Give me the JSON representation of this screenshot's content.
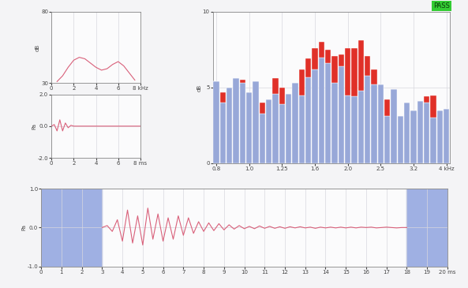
{
  "chart_data": [
    {
      "type": "line",
      "ylabel": "dB",
      "x": [
        0.5,
        1.0,
        1.5,
        2.0,
        2.5,
        3.0,
        3.5,
        4.0,
        4.5,
        5.0,
        5.5,
        6.0,
        6.5,
        7.0,
        7.5
      ],
      "values": [
        31,
        35,
        41,
        46,
        48,
        47,
        44,
        41,
        39,
        40,
        43,
        45,
        42,
        37,
        32
      ],
      "color": "#d9607a",
      "xlim": [
        0,
        8
      ],
      "xticks": [
        0,
        2,
        4,
        6,
        {
          "value": 8,
          "label": "8 kHz"
        }
      ],
      "ylim": [
        30,
        80
      ],
      "yticks": [
        30,
        80
      ],
      "grid": true
    },
    {
      "type": "line",
      "ylabel": "Pa",
      "x": [
        0,
        0.25,
        0.5,
        0.75,
        1.0,
        1.25,
        1.5,
        1.75,
        2.0,
        2.25,
        2.5,
        2.75,
        3.0,
        3.25,
        3.5,
        3.75,
        4.0,
        4.25,
        4.5,
        4.75,
        5.0,
        5.25,
        5.5,
        5.75,
        6.0,
        6.25,
        6.5,
        6.75,
        7.0,
        7.25,
        7.5,
        7.75,
        8.0
      ],
      "values": [
        0,
        0.1,
        -0.3,
        0.4,
        -0.3,
        0.2,
        -0.1,
        0.05,
        0,
        0,
        0,
        0,
        0,
        0,
        0,
        0,
        0,
        0,
        0,
        0,
        0,
        0,
        0,
        0,
        0,
        0,
        0,
        0,
        0,
        0,
        0,
        0,
        0
      ],
      "color": "#d9607a",
      "xlim": [
        0,
        8
      ],
      "xticks": [
        0,
        2,
        4,
        6,
        {
          "value": 8,
          "label": "8 ms"
        }
      ],
      "ylim": [
        -2,
        2
      ],
      "yticks": [
        {
          "value": -2,
          "label": "-2.0"
        },
        {
          "value": 0,
          "label": "0.0"
        },
        {
          "value": 2,
          "label": "2.0"
        }
      ],
      "grid": true
    },
    {
      "type": "bar",
      "stacked": true,
      "ylabel": "dB",
      "annotation": "PASS",
      "categories": [
        "0.8",
        null,
        null,
        null,
        null,
        "1.0",
        null,
        null,
        null,
        null,
        "1.25",
        null,
        null,
        null,
        null,
        "1.6",
        null,
        null,
        null,
        null,
        "2.0",
        null,
        null,
        null,
        null,
        "2.5",
        null,
        null,
        null,
        null,
        "3.2",
        null,
        null,
        null,
        null,
        "4 kHz"
      ],
      "series": [
        {
          "color": "#98a8d8",
          "values": [
            5.4,
            4.0,
            5.0,
            5.6,
            5.3,
            4.7,
            5.4,
            3.3,
            4.2,
            4.6,
            3.9,
            4.6,
            5.3,
            4.5,
            5.7,
            6.2,
            7.0,
            6.6,
            5.3,
            6.4,
            4.5,
            4.4,
            4.8,
            5.8,
            5.2,
            5.2,
            3.1,
            4.9,
            3.1,
            4.0,
            3.5,
            4.1,
            4.0,
            3.0,
            3.5,
            3.6
          ]
        },
        {
          "color": "#e03028",
          "values": [
            0,
            0.7,
            0,
            0,
            0.2,
            0,
            0,
            0.7,
            0,
            1.0,
            1.1,
            0,
            0,
            1.7,
            1.2,
            1.4,
            1.0,
            0.9,
            1.8,
            0.8,
            3.1,
            3.2,
            3.3,
            1.3,
            1.0,
            0,
            1.1,
            0,
            0,
            0,
            0,
            0,
            0.4,
            1.5,
            0,
            0
          ]
        }
      ],
      "ylim": [
        0,
        10
      ],
      "yticks": [
        0,
        5,
        10
      ],
      "grid": true
    },
    {
      "type": "line",
      "ylabel": "Pa",
      "x": [
        3.0,
        3.25,
        3.5,
        3.75,
        4.0,
        4.25,
        4.5,
        4.75,
        5.0,
        5.25,
        5.5,
        5.75,
        6.0,
        6.25,
        6.5,
        6.75,
        7.0,
        7.25,
        7.5,
        7.75,
        8.0,
        8.25,
        8.5,
        8.75,
        9.0,
        9.25,
        9.5,
        9.75,
        10.0,
        10.25,
        10.5,
        10.75,
        11.0,
        11.25,
        11.5,
        11.75,
        12.0,
        12.25,
        12.5,
        12.75,
        13.0,
        13.25,
        13.5,
        13.75,
        14.0,
        14.25,
        14.5,
        14.75,
        15.0,
        15.25,
        15.5,
        15.75,
        16.0,
        16.25,
        16.5,
        16.75,
        17.0,
        17.25,
        17.5,
        17.75,
        18.0
      ],
      "values": [
        0,
        0.05,
        -0.1,
        0.2,
        -0.35,
        0.45,
        -0.4,
        0.3,
        -0.45,
        0.5,
        -0.3,
        0.35,
        -0.35,
        0.25,
        -0.3,
        0.3,
        -0.2,
        0.25,
        -0.15,
        0.15,
        -0.1,
        0.12,
        -0.08,
        0.1,
        -0.06,
        0.07,
        -0.04,
        0.05,
        -0.03,
        0.03,
        -0.03,
        0.04,
        -0.02,
        0.03,
        -0.02,
        0.02,
        -0.02,
        0.02,
        -0.01,
        0.02,
        -0.01,
        0.01,
        -0.02,
        0.01,
        -0.01,
        0.01,
        -0.01,
        0.01,
        -0.01,
        0.01,
        -0.01,
        0.01,
        0,
        0.01,
        -0.01,
        0,
        0.01,
        0,
        -0.01,
        0,
        0
      ],
      "color": "#d9607a",
      "shaded_ranges": [
        [
          0,
          3
        ],
        [
          18,
          20
        ]
      ],
      "xlim": [
        0,
        20
      ],
      "xticks": [
        0,
        1,
        2,
        3,
        4,
        5,
        6,
        7,
        8,
        9,
        10,
        11,
        12,
        13,
        14,
        15,
        16,
        17,
        18,
        19,
        {
          "value": 20,
          "label": "20 ms"
        }
      ],
      "ylim": [
        -1,
        1
      ],
      "yticks": [
        {
          "value": -1,
          "label": "-1.0"
        },
        {
          "value": 0,
          "label": "0.0"
        },
        {
          "value": 1,
          "label": "1.0"
        }
      ],
      "grid": true
    }
  ]
}
